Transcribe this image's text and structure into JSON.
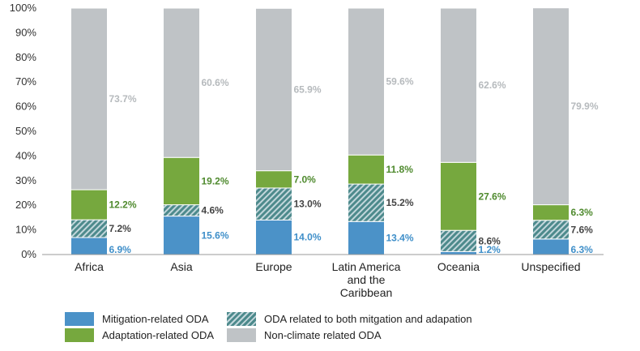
{
  "chart_data": {
    "type": "bar",
    "stacked": true,
    "categories": [
      [
        "Africa"
      ],
      [
        "Asia"
      ],
      [
        "Europe"
      ],
      [
        "Latin America",
        "and the",
        "Caribbean"
      ],
      [
        "Oceania"
      ],
      [
        "Unspecified"
      ]
    ],
    "y_ticks": [
      "0%",
      "10%",
      "20%",
      "30%",
      "40%",
      "50%",
      "60%",
      "70%",
      "80%",
      "90%",
      "100%"
    ],
    "ylim": [
      0,
      100
    ],
    "grid": false,
    "legend_placement": "bottom",
    "series": [
      {
        "name": "Mitigation-related ODA",
        "color": "#4b92c8",
        "label_color": "#3f8fc9",
        "values": [
          6.9,
          15.6,
          14.0,
          13.4,
          1.2,
          6.3
        ],
        "labels": [
          "6.9%",
          "15.6%",
          "14.0%",
          "13.4%",
          "1.2%",
          "6.3%"
        ]
      },
      {
        "name": "ODA related to both mitgation and adapation",
        "color": "#4d8a8c",
        "pattern": "hatch",
        "label_color": "#444444",
        "values": [
          7.2,
          4.6,
          13.0,
          15.2,
          8.6,
          7.6
        ],
        "labels": [
          "7.2%",
          "4.6%",
          "13.0%",
          "15.2%",
          "8.6%",
          "7.6%"
        ]
      },
      {
        "name": "Adaptation-related ODA",
        "color": "#76a83e",
        "label_color": "#4f8a2e",
        "values": [
          12.2,
          19.2,
          7.0,
          11.8,
          27.6,
          6.3
        ],
        "labels": [
          "12.2%",
          "19.2%",
          "7.0%",
          "11.8%",
          "27.6%",
          "6.3%"
        ]
      },
      {
        "name": "Non-climate related ODA",
        "color": "#bfc3c6",
        "label_color": "#b6babd",
        "values": [
          73.7,
          60.6,
          65.9,
          59.6,
          62.6,
          79.9
        ],
        "labels": [
          "73.7%",
          "60.6%",
          "65.9%",
          "59.6%",
          "62.6%",
          "79.9%"
        ]
      }
    ]
  },
  "legend": {
    "mitigation": "Mitigation-related ODA",
    "adaptation": "Adaptation-related ODA",
    "both": "ODA related to both mitgation and adapation",
    "non_climate": "Non-climate related ODA"
  }
}
